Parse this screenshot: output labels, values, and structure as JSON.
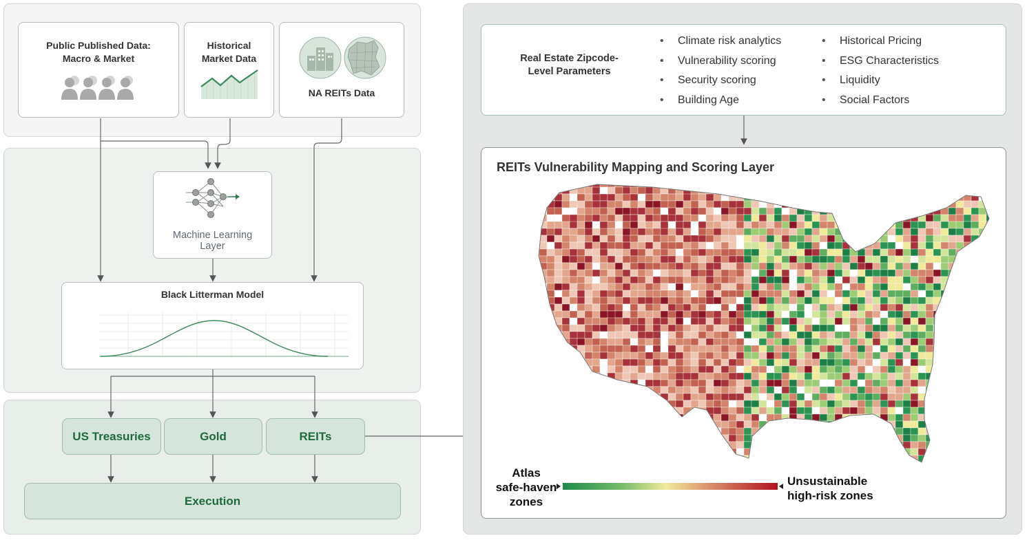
{
  "sources": {
    "public_data_label": "Public Published Data:\nMacro & Market",
    "historical_label": "Historical\nMarket Data",
    "reits_label": "NA REITs Data"
  },
  "ml": {
    "label": "Machine Learning\nLayer"
  },
  "black_litterman": {
    "title": "Black Litterman Model"
  },
  "assets": [
    {
      "label": "US Treasuries"
    },
    {
      "label": "Gold"
    },
    {
      "label": "REITs"
    }
  ],
  "execution": {
    "label": "Execution"
  },
  "parameters": {
    "title": "Real Estate Zipcode-\nLevel Parameters",
    "column1": [
      "Climate risk analytics",
      "Vulnerability scoring",
      "Security scoring",
      "Building Age"
    ],
    "column2": [
      "Historical Pricing",
      "ESG Characteristics",
      "Liquidity",
      "Social Factors"
    ]
  },
  "map": {
    "title": "REITs Vulnerability Mapping and Scoring Layer",
    "legend_low": "Atlas\nsafe-haven\nzones",
    "legend_high": "Unsustainable\nhigh-risk zones"
  },
  "icons": {
    "people": "people-group-icon",
    "chart": "area-chart-icon",
    "buildings": "buildings-icon",
    "map": "map-icon",
    "network": "neural-network-icon"
  },
  "colors": {
    "safe": "#1f8a4c",
    "mid": "#f1ea9a",
    "risk": "#b3121e",
    "accent_green": "#1e6a3b",
    "box_fill": "#d5e5dc"
  }
}
